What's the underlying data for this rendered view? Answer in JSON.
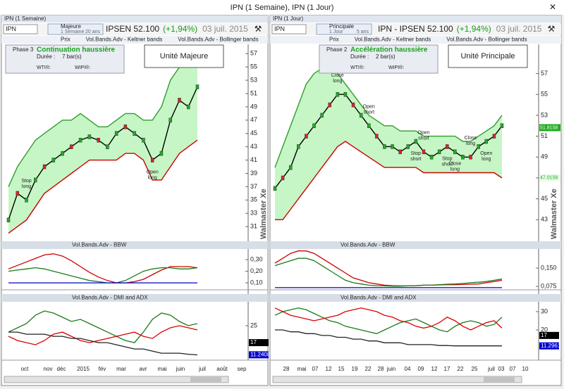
{
  "window_title": "IPN (1 Semaine), IPN (1 Jour)",
  "panes": [
    {
      "header": "IPN (1 Semaine)",
      "symbol": "IPN",
      "unit": "Majeure",
      "period": "1 Semaine",
      "depth": "20 ans",
      "quote": "IPSEN 52.100",
      "change": "(+1,94%)",
      "date": "03 juil. 2015",
      "legend": [
        "Prix",
        "Vol.Bands.Adv - Keltner bands",
        "Vol.Bands.Adv - Bollinger bands"
      ],
      "phase": "Phase 3",
      "phase_name": "Continuation haussière",
      "duration": "Durée :",
      "duration_value": "7 bar(s)",
      "wti": "WTI®:",
      "wipi": "WIPI®:",
      "unit_label": "Unité Majeure",
      "watermark": "Walmaster Xe",
      "price_chart": {
        "type": "line",
        "ylim": [
          28.9,
          58.4
        ],
        "yticks": [
          31,
          33,
          35,
          37,
          39,
          41,
          43,
          45,
          47,
          49,
          51,
          53,
          55,
          57
        ],
        "series": [
          {
            "color": "#000000",
            "values": [
              32,
              36,
              35,
              38,
              40,
              41,
              42,
              43,
              44,
              44.5,
              44,
              43,
              45,
              46,
              45,
              44,
              41,
              42,
              47,
              50,
              49,
              52
            ]
          },
          {
            "color": "#2e9e2e",
            "values": [
              37,
              40,
              42,
              44,
              45,
              46,
              47,
              47,
              48,
              47,
              46,
              46,
              47,
              48,
              48,
              47,
              47,
              49,
              53,
              55,
              56,
              57
            ]
          },
          {
            "color": "#cc0000",
            "values": [
              30,
              31,
              32,
              34,
              36,
              37,
              38,
              39,
              40,
              41,
              41,
              41,
              41,
              42,
              42,
              41,
              38,
              38,
              40,
              42,
              43,
              44
            ]
          }
        ],
        "annotations": [
          [
            "Stop",
            "long"
          ],
          [
            "Open",
            "long"
          ]
        ],
        "badges": []
      },
      "bbw": {
        "type": "line",
        "title": "Vol.Bands.Adv - BBW",
        "ylim": [
          0.04,
          0.385
        ],
        "yticks": [
          {
            "value": 0.1,
            "label": "0,10"
          },
          {
            "value": 0.2,
            "label": "0,20"
          },
          {
            "value": 0.3,
            "label": "0,30"
          }
        ],
        "series": [
          {
            "color": "#cc0000",
            "values": [
              0.22,
              0.25,
              0.28,
              0.31,
              0.34,
              0.35,
              0.33,
              0.29,
              0.24,
              0.19,
              0.15,
              0.12,
              0.1,
              0.1,
              0.11,
              0.13,
              0.17,
              0.21,
              0.24,
              0.24,
              0.24,
              0.23
            ]
          },
          {
            "color": "#1a7a1a",
            "values": [
              0.2,
              0.21,
              0.22,
              0.23,
              0.22,
              0.2,
              0.18,
              0.16,
              0.14,
              0.12,
              0.11,
              0.1,
              0.1,
              0.12,
              0.16,
              0.2,
              0.22,
              0.23,
              0.23,
              0.22,
              0.22,
              0.23
            ]
          },
          {
            "color": "#0000cc",
            "values": [
              0.1,
              0.1,
              0.1,
              0.1,
              0.1,
              0.1,
              0.1,
              0.1,
              0.1,
              0.1,
              0.1,
              0.1,
              0.1,
              0.1,
              0.1,
              0.1,
              0.1,
              0.1,
              0.1,
              0.1,
              0.1,
              0.1
            ]
          }
        ]
      },
      "dmi": {
        "type": "line",
        "title": "Vol.Bands.Adv - DMI and ADX",
        "ylim": [
          8.7,
          36
        ],
        "yticks": [
          25
        ],
        "series": [
          {
            "color": "#1a7a1a",
            "values": [
              22,
              24,
              26,
              30,
              32,
              31,
              29,
              27,
              28,
              26,
              24,
              22,
              20,
              18,
              17,
              22,
              28,
              31,
              30,
              27,
              25,
              26
            ]
          },
          {
            "color": "#dd0000",
            "values": [
              20,
              18,
              17,
              16,
              18,
              21,
              22,
              20,
              18,
              17,
              18,
              19,
              20,
              21,
              22,
              20,
              19,
              22,
              24,
              25,
              24,
              23
            ]
          },
          {
            "color": "#222222",
            "values": [
              22,
              22,
              21,
              21,
              21,
              20,
              20,
              19,
              19,
              18,
              17,
              17,
              16,
              15,
              14,
              14,
              13,
              12,
              12,
              12,
              11.5,
              11.2
            ]
          }
        ],
        "badges": [
          17,
          11.2408
        ]
      },
      "x_labels": [
        "oct",
        "nov",
        "déc",
        "2015",
        "fév",
        "mar",
        "avr",
        "mai",
        "juin",
        "juil",
        "août",
        "sep"
      ]
    },
    {
      "header": "IPN (1 Jour)",
      "symbol": "IPN",
      "unit": "Principale",
      "period": "1 Jour",
      "depth": "5 ans",
      "quote": "IPN - IPSEN 52.100",
      "change": "(+1,94%)",
      "date": "03 juil. 2015",
      "legend": [
        "Prix",
        "Vol.Bands.Adv - Keltner bands",
        "Vol.Bands.Adv - Bollinger bands"
      ],
      "phase": "Phase 2",
      "phase_name": "Accélération haussière",
      "duration": "Durée :",
      "duration_value": "2 bar(s)",
      "wti": "WTI®:",
      "wipi": "WIPI®:",
      "unit_label": "Unité Principale",
      "watermark": "Walmaster Xe",
      "price_chart": {
        "type": "line",
        "ylim": [
          41,
          59.8
        ],
        "yticks": [
          43,
          45,
          47,
          49,
          51,
          53,
          55,
          57
        ],
        "series": [
          {
            "color": "#000000",
            "values": [
              46,
              47,
              48,
              50,
              51,
              52,
              53,
              54,
              55,
              55,
              54,
              53,
              52,
              51,
              50,
              50,
              49.5,
              50,
              50.5,
              49.5,
              49,
              49.5,
              50,
              49.5,
              49,
              49,
              50,
              50.5,
              51,
              52
            ]
          },
          {
            "color": "#2e9e2e",
            "values": [
              48,
              50,
              52,
              54,
              56,
              57,
              57.5,
              57.5,
              57,
              56,
              55,
              54,
              53,
              52.5,
              52,
              52,
              51.5,
              51.5,
              51.5,
              51,
              51,
              51,
              51,
              51,
              50.5,
              50.5,
              51,
              51.5,
              52,
              53
            ]
          },
          {
            "color": "#cc0000",
            "values": [
              43,
              43,
              44,
              45,
              46,
              47,
              48,
              49,
              50,
              50.5,
              50,
              49.5,
              49,
              48.5,
              48,
              48,
              48,
              48,
              48,
              47.5,
              47.5,
              47.5,
              47.5,
              47.5,
              47.5,
              47.5,
              47.5,
              47.5,
              47.5,
              47
            ]
          }
        ],
        "annotations": [
          [
            "Close",
            "long"
          ],
          [
            "Open",
            "short"
          ],
          [
            "Open",
            "short"
          ],
          [
            "Close",
            "long"
          ],
          [
            "Stop",
            "short"
          ],
          [
            "Stop",
            "short"
          ],
          [
            "Close",
            "long"
          ],
          [
            "Open",
            "long"
          ]
        ],
        "badges": [
          51.8158,
          47.0158
        ]
      },
      "bbw": {
        "type": "line",
        "title": "Vol.Bands.Adv - BBW",
        "ylim": [
          0.061,
          0.225
        ],
        "yticks": [
          {
            "value": 0.075,
            "label": "0,075"
          },
          {
            "value": 0.15,
            "label": "0,150"
          }
        ],
        "series": [
          {
            "color": "#cc0000",
            "values": [
              0.17,
              0.19,
              0.21,
              0.22,
              0.22,
              0.21,
              0.19,
              0.17,
              0.15,
              0.13,
              0.11,
              0.1,
              0.09,
              0.085,
              0.08,
              0.078,
              0.077,
              0.077,
              0.078,
              0.08,
              0.08,
              0.081,
              0.082,
              0.082,
              0.083,
              0.084,
              0.085,
              0.09,
              0.095,
              0.1
            ]
          },
          {
            "color": "#1a7a1a",
            "values": [
              0.16,
              0.17,
              0.18,
              0.19,
              0.19,
              0.18,
              0.16,
              0.14,
              0.12,
              0.1,
              0.09,
              0.085,
              0.08,
              0.078,
              0.077,
              0.076,
              0.076,
              0.077,
              0.078,
              0.08,
              0.08,
              0.082,
              0.084,
              0.085,
              0.087,
              0.09,
              0.092,
              0.095,
              0.1,
              0.105
            ]
          },
          {
            "color": "#0000cc",
            "values": [
              0.07,
              0.07,
              0.07,
              0.07,
              0.07,
              0.07,
              0.07,
              0.07,
              0.07,
              0.07,
              0.07,
              0.07,
              0.07,
              0.07,
              0.07,
              0.07,
              0.07,
              0.07,
              0.07,
              0.07,
              0.07,
              0.07,
              0.07,
              0.07,
              0.07,
              0.07,
              0.07,
              0.07,
              0.07,
              0.07
            ]
          }
        ]
      },
      "dmi": {
        "type": "line",
        "title": "Vol.Bands.Adv - DMI and ADX",
        "ylim": [
          3.5,
          35
        ],
        "yticks": [
          30,
          20
        ],
        "series": [
          {
            "color": "#1a7a1a",
            "values": [
              28,
              30,
              31,
              32,
              31,
              29,
              27,
              25,
              24,
              22,
              21,
              20,
              19,
              18,
              20,
              22,
              24,
              25,
              26,
              24,
              22,
              20,
              19,
              22,
              24,
              25,
              24,
              22,
              23,
              27
            ]
          },
          {
            "color": "#dd0000",
            "values": [
              32,
              30,
              28,
              27,
              26,
              25,
              26,
              27,
              28,
              30,
              31,
              32,
              31,
              30,
              28,
              27,
              25,
              24,
              22,
              21,
              22,
              24,
              27,
              25,
              22,
              20,
              22,
              24,
              25,
              21
            ]
          },
          {
            "color": "#222222",
            "values": [
              20,
              20,
              19,
              19,
              18,
              18,
              17,
              17,
              16,
              16,
              15,
              15,
              14,
              14,
              13,
              13,
              13,
              12,
              12,
              12,
              12,
              11.5,
              11.5,
              11.3,
              11.3,
              11.3,
              11.3,
              11.3,
              11.3,
              11.3
            ]
          }
        ],
        "badges": [
          17,
          11.2961
        ]
      },
      "x_labels": [
        "28",
        "mai",
        "07",
        "12",
        "15",
        "19",
        "22",
        "28",
        "juin",
        "04",
        "09",
        "12",
        "17",
        "22",
        "25",
        "juil",
        "03",
        "07",
        "10"
      ]
    }
  ]
}
